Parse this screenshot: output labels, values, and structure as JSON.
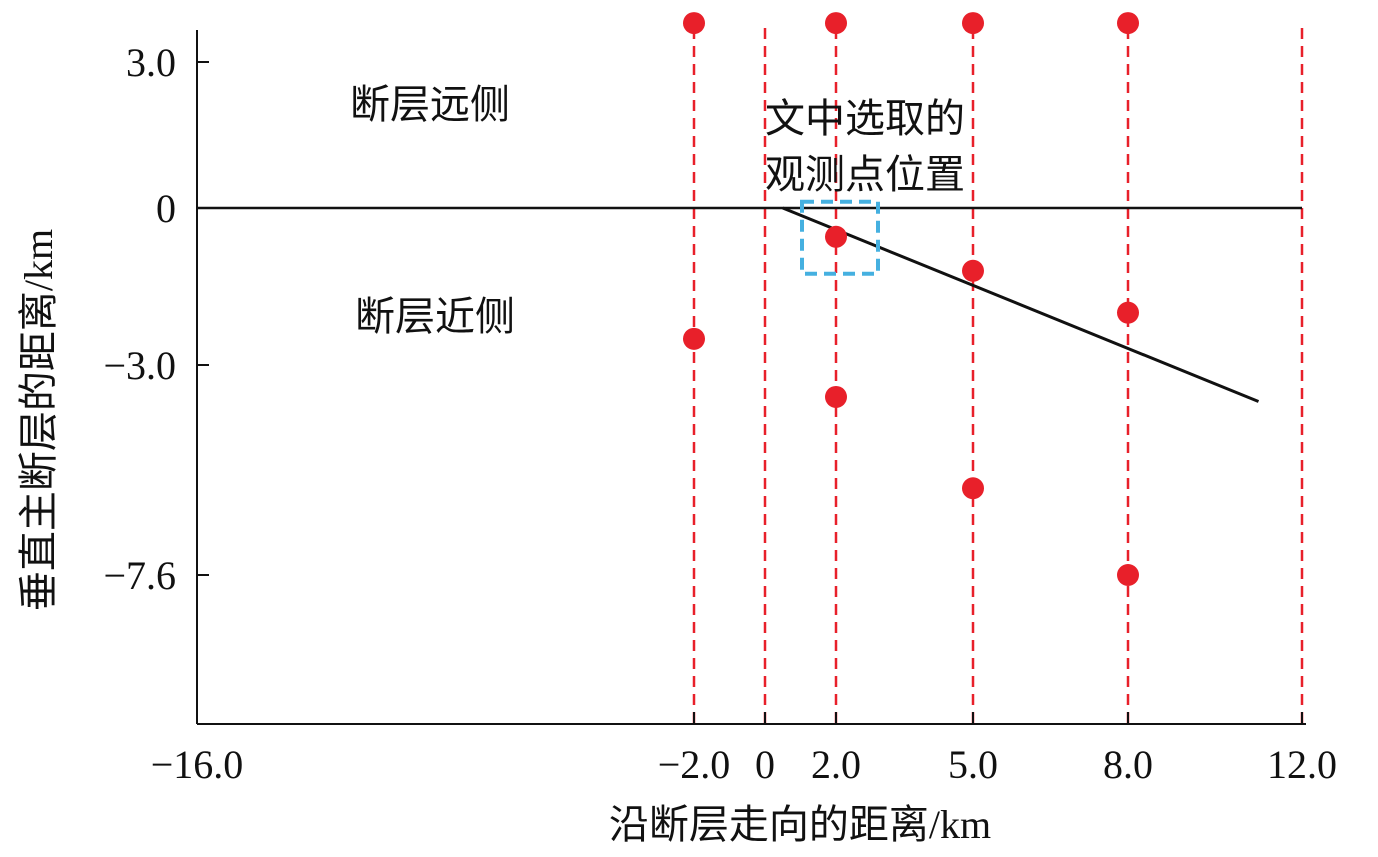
{
  "chart_data": {
    "type": "scatter",
    "title": "",
    "xlabel": "沿断层走向的距离/km",
    "ylabel": "垂直主断层的距离/km",
    "x_ticks": [
      {
        "value": -16.0,
        "label": "−16.0"
      },
      {
        "value": -2.0,
        "label": "−2.0"
      },
      {
        "value": 0,
        "label": "0"
      },
      {
        "value": 2.0,
        "label": "2.0"
      },
      {
        "value": 5.0,
        "label": "5.0"
      },
      {
        "value": 8.0,
        "label": "8.0"
      },
      {
        "value": 12.0,
        "label": "12.0"
      }
    ],
    "y_ticks": [
      {
        "value": 3.0,
        "label": "3.0"
      },
      {
        "value": 0,
        "label": "0"
      },
      {
        "value": -3.0,
        "label": "−3.0"
      },
      {
        "value": -7.6,
        "label": "−7.6"
      }
    ],
    "grid": false,
    "vertical_reference_lines_x": [
      -2.0,
      0,
      2.0,
      5.0,
      8.0,
      12.0
    ],
    "horizontal_reference_line_y": 0,
    "fault_trace": [
      [
        0.5,
        0.0
      ],
      [
        11.0,
        -3.8
      ]
    ],
    "points": [
      {
        "x": -2.0,
        "y": 3.8
      },
      {
        "x": 2.0,
        "y": 3.8
      },
      {
        "x": 5.0,
        "y": 3.8
      },
      {
        "x": 8.0,
        "y": 3.8
      },
      {
        "x": 2.0,
        "y": -0.55
      },
      {
        "x": 5.0,
        "y": -1.2
      },
      {
        "x": 8.0,
        "y": -2.0
      },
      {
        "x": -2.0,
        "y": -2.5
      },
      {
        "x": 2.0,
        "y": -3.7
      },
      {
        "x": 5.0,
        "y": -5.7
      },
      {
        "x": 8.0,
        "y": -7.6
      }
    ],
    "highlight_box_point": {
      "x": 2.0,
      "y": -0.55
    },
    "annotations": {
      "far_side": "断层远侧",
      "near_side": "断层近侧",
      "selected_line1": "文中选取的",
      "selected_line2": "观测点位置"
    },
    "colors": {
      "points": "#e8202a",
      "reference_lines": "#e8202a",
      "highlight_box": "#45b0e0",
      "axes": "#111111",
      "fault_line": "#111111"
    }
  }
}
